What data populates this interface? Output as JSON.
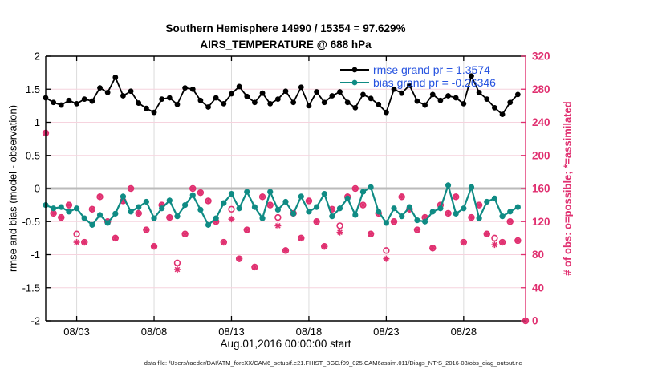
{
  "title": {
    "line1": "Southern Hemisphere 14990 / 15354 = 97.629%",
    "line2": "AIRS_TEMPERATURE @ 688 hPa"
  },
  "legend": {
    "entries": [
      {
        "label": "rmse grand pr = 1.3574",
        "series": "rmse"
      },
      {
        "label": "bias grand pr = -0.26346",
        "series": "bias"
      }
    ],
    "text_color": "#2653e0"
  },
  "footer": {
    "datafile": "data file: /Users/raeder/DAI/ATM_forcXX/CAM6_setup/f.e21.FHIST_BGC.f09_025.CAM6assim.011/Diags_NTrS_2016-08/obs_diag_output.nc"
  },
  "colors": {
    "rmse": "#000000",
    "bias": "#0f8b84",
    "obs": "#e03070",
    "grid_horizontal": "#f6d3de",
    "grid_vertical": "#dcdcdc",
    "zero_line": "#bbbbbb",
    "axis_left": "#000000",
    "axis_right": "#e03070"
  },
  "chart_data": {
    "type": "line",
    "title": "Southern Hemisphere 14990 / 15354 = 97.629% | AIRS_TEMPERATURE @ 688 hPa",
    "xlabel": "Aug.01,2016 00:00:00 start",
    "ylabel_left": "rmse and bias (model - observation)",
    "ylabel_right": "# of obs: o=possible; *=assimilated",
    "x_start_day": 0,
    "x_bin_interval_days": 0.5,
    "xlim_days": [
      0,
      31
    ],
    "ylim_left": [
      -2,
      2
    ],
    "ylim_right": [
      0,
      320
    ],
    "yticks_left": [
      2,
      1.5,
      1,
      0.5,
      0,
      -0.5,
      -1,
      -1.5,
      -2
    ],
    "yticks_right": [
      320,
      280,
      240,
      200,
      160,
      120,
      80,
      40,
      0
    ],
    "x_ticks": [
      {
        "day": 2,
        "label": "08/03"
      },
      {
        "day": 7,
        "label": "08/08"
      },
      {
        "day": 12,
        "label": "08/13"
      },
      {
        "day": 17,
        "label": "08/18"
      },
      {
        "day": 22,
        "label": "08/23"
      },
      {
        "day": 27,
        "label": "08/28"
      }
    ],
    "grid": true,
    "zero_reference_line": 0,
    "legend_position": "top-right-inside",
    "series": [
      {
        "name": "rmse",
        "axis": "left",
        "marker": "filled-circle",
        "values": [
          1.37,
          1.3,
          1.26,
          1.33,
          1.28,
          1.35,
          1.32,
          1.52,
          1.45,
          1.68,
          1.4,
          1.47,
          1.29,
          1.21,
          1.15,
          1.35,
          1.37,
          1.27,
          1.52,
          1.5,
          1.33,
          1.23,
          1.37,
          1.28,
          1.43,
          1.54,
          1.39,
          1.3,
          1.44,
          1.28,
          1.35,
          1.47,
          1.3,
          1.53,
          1.25,
          1.46,
          1.3,
          1.4,
          1.46,
          1.3,
          1.22,
          1.42,
          1.36,
          1.27,
          1.15,
          1.5,
          1.44,
          1.56,
          1.32,
          1.26,
          1.42,
          1.33,
          1.4,
          1.37,
          1.28,
          1.7,
          1.45,
          1.35,
          1.22,
          1.12,
          1.3,
          1.42
        ]
      },
      {
        "name": "bias",
        "axis": "left",
        "marker": "filled-circle",
        "values": [
          -0.25,
          -0.3,
          -0.28,
          -0.35,
          -0.3,
          -0.45,
          -0.55,
          -0.4,
          -0.52,
          -0.38,
          -0.12,
          -0.35,
          -0.28,
          -0.2,
          -0.45,
          -0.3,
          -0.18,
          -0.42,
          -0.25,
          -0.1,
          -0.32,
          -0.55,
          -0.45,
          -0.22,
          -0.08,
          -0.3,
          -0.05,
          -0.28,
          -0.45,
          -0.05,
          -0.32,
          -0.2,
          -0.38,
          -0.12,
          -0.35,
          -0.28,
          -0.08,
          -0.42,
          -0.3,
          -0.15,
          -0.4,
          -0.05,
          0.02,
          -0.35,
          -0.52,
          -0.3,
          -0.42,
          -0.28,
          -0.48,
          -0.5,
          -0.35,
          -0.3,
          0.05,
          -0.38,
          -0.3,
          0.02,
          -0.45,
          -0.2,
          -0.15,
          -0.42,
          -0.35,
          -0.28
        ]
      },
      {
        "name": "obs_possible",
        "axis": "right",
        "marker": "open-circle",
        "values": [
          227,
          130,
          125,
          140,
          105,
          95,
          135,
          150,
          120,
          100,
          145,
          160,
          130,
          110,
          90,
          140,
          125,
          70,
          105,
          160,
          155,
          145,
          120,
          95,
          135,
          75,
          110,
          65,
          150,
          140,
          125,
          85,
          130,
          100,
          145,
          120,
          90,
          135,
          115,
          150,
          160,
          140,
          105,
          130,
          85,
          120,
          150,
          135,
          110,
          125,
          88,
          140,
          130,
          150,
          95,
          125,
          140,
          105,
          100,
          95,
          120,
          97,
          0
        ]
      },
      {
        "name": "obs_assimilated",
        "axis": "right",
        "marker": "asterisk",
        "values": [
          227,
          130,
          125,
          140,
          95,
          95,
          135,
          150,
          120,
          100,
          145,
          160,
          130,
          110,
          90,
          140,
          125,
          62,
          105,
          160,
          155,
          145,
          120,
          95,
          123,
          75,
          110,
          65,
          150,
          140,
          115,
          85,
          130,
          100,
          145,
          120,
          90,
          135,
          107,
          150,
          160,
          140,
          105,
          130,
          75,
          120,
          150,
          135,
          110,
          125,
          88,
          140,
          130,
          150,
          95,
          125,
          140,
          105,
          92,
          95,
          120,
          97,
          0
        ]
      }
    ]
  }
}
